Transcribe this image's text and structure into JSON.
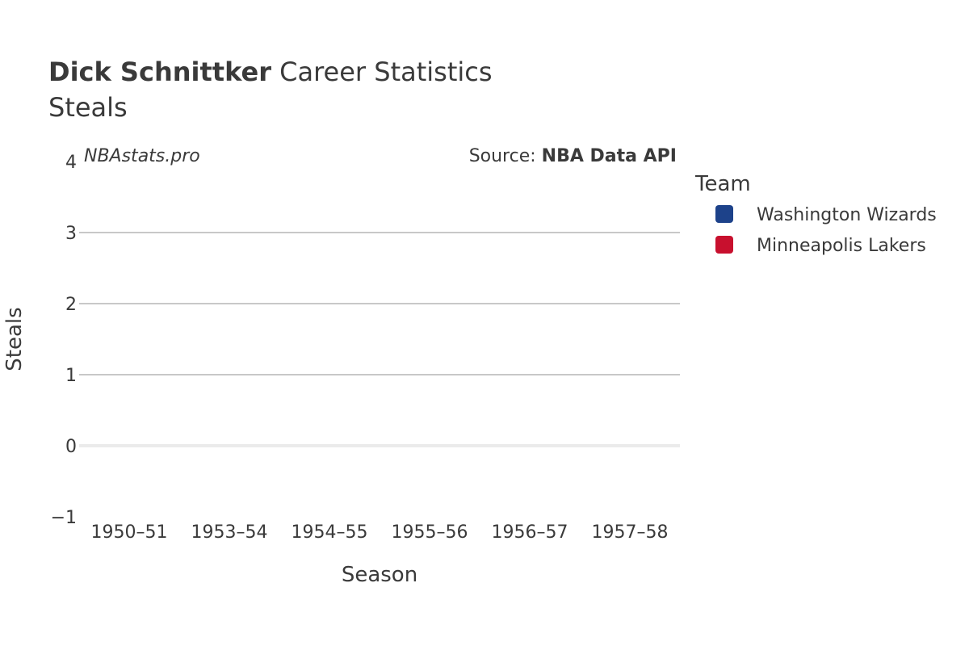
{
  "chart_data": {
    "type": "bar",
    "title_bold": "Dick Schnittker",
    "title_rest": " Career Statistics",
    "subtitle": "Steals",
    "watermark": "NBAstats.pro",
    "source_prefix": "Source: ",
    "source_name": "NBA Data API",
    "xlabel": "Season",
    "ylabel": "Steals",
    "categories": [
      "1950–51",
      "1953–54",
      "1954–55",
      "1955–56",
      "1956–57",
      "1957–58"
    ],
    "ylim": [
      -1,
      4
    ],
    "yticks": [
      -1,
      0,
      1,
      2,
      3,
      4
    ],
    "ytick_labels": [
      "−1",
      "0",
      "1",
      "2",
      "3",
      "4"
    ],
    "grid": true,
    "legend": {
      "title": "Team",
      "placement": "right",
      "items": [
        {
          "name": "Washington Wizards",
          "color": "#1d428a"
        },
        {
          "name": "Minneapolis Lakers",
          "color": "#c8102e"
        }
      ]
    },
    "series": [
      {
        "name": "Washington Wizards",
        "color": "#1d428a",
        "values": [
          null,
          null,
          null,
          null,
          null,
          null
        ]
      },
      {
        "name": "Minneapolis Lakers",
        "color": "#c8102e",
        "values": [
          null,
          null,
          null,
          null,
          null,
          null
        ]
      }
    ]
  }
}
